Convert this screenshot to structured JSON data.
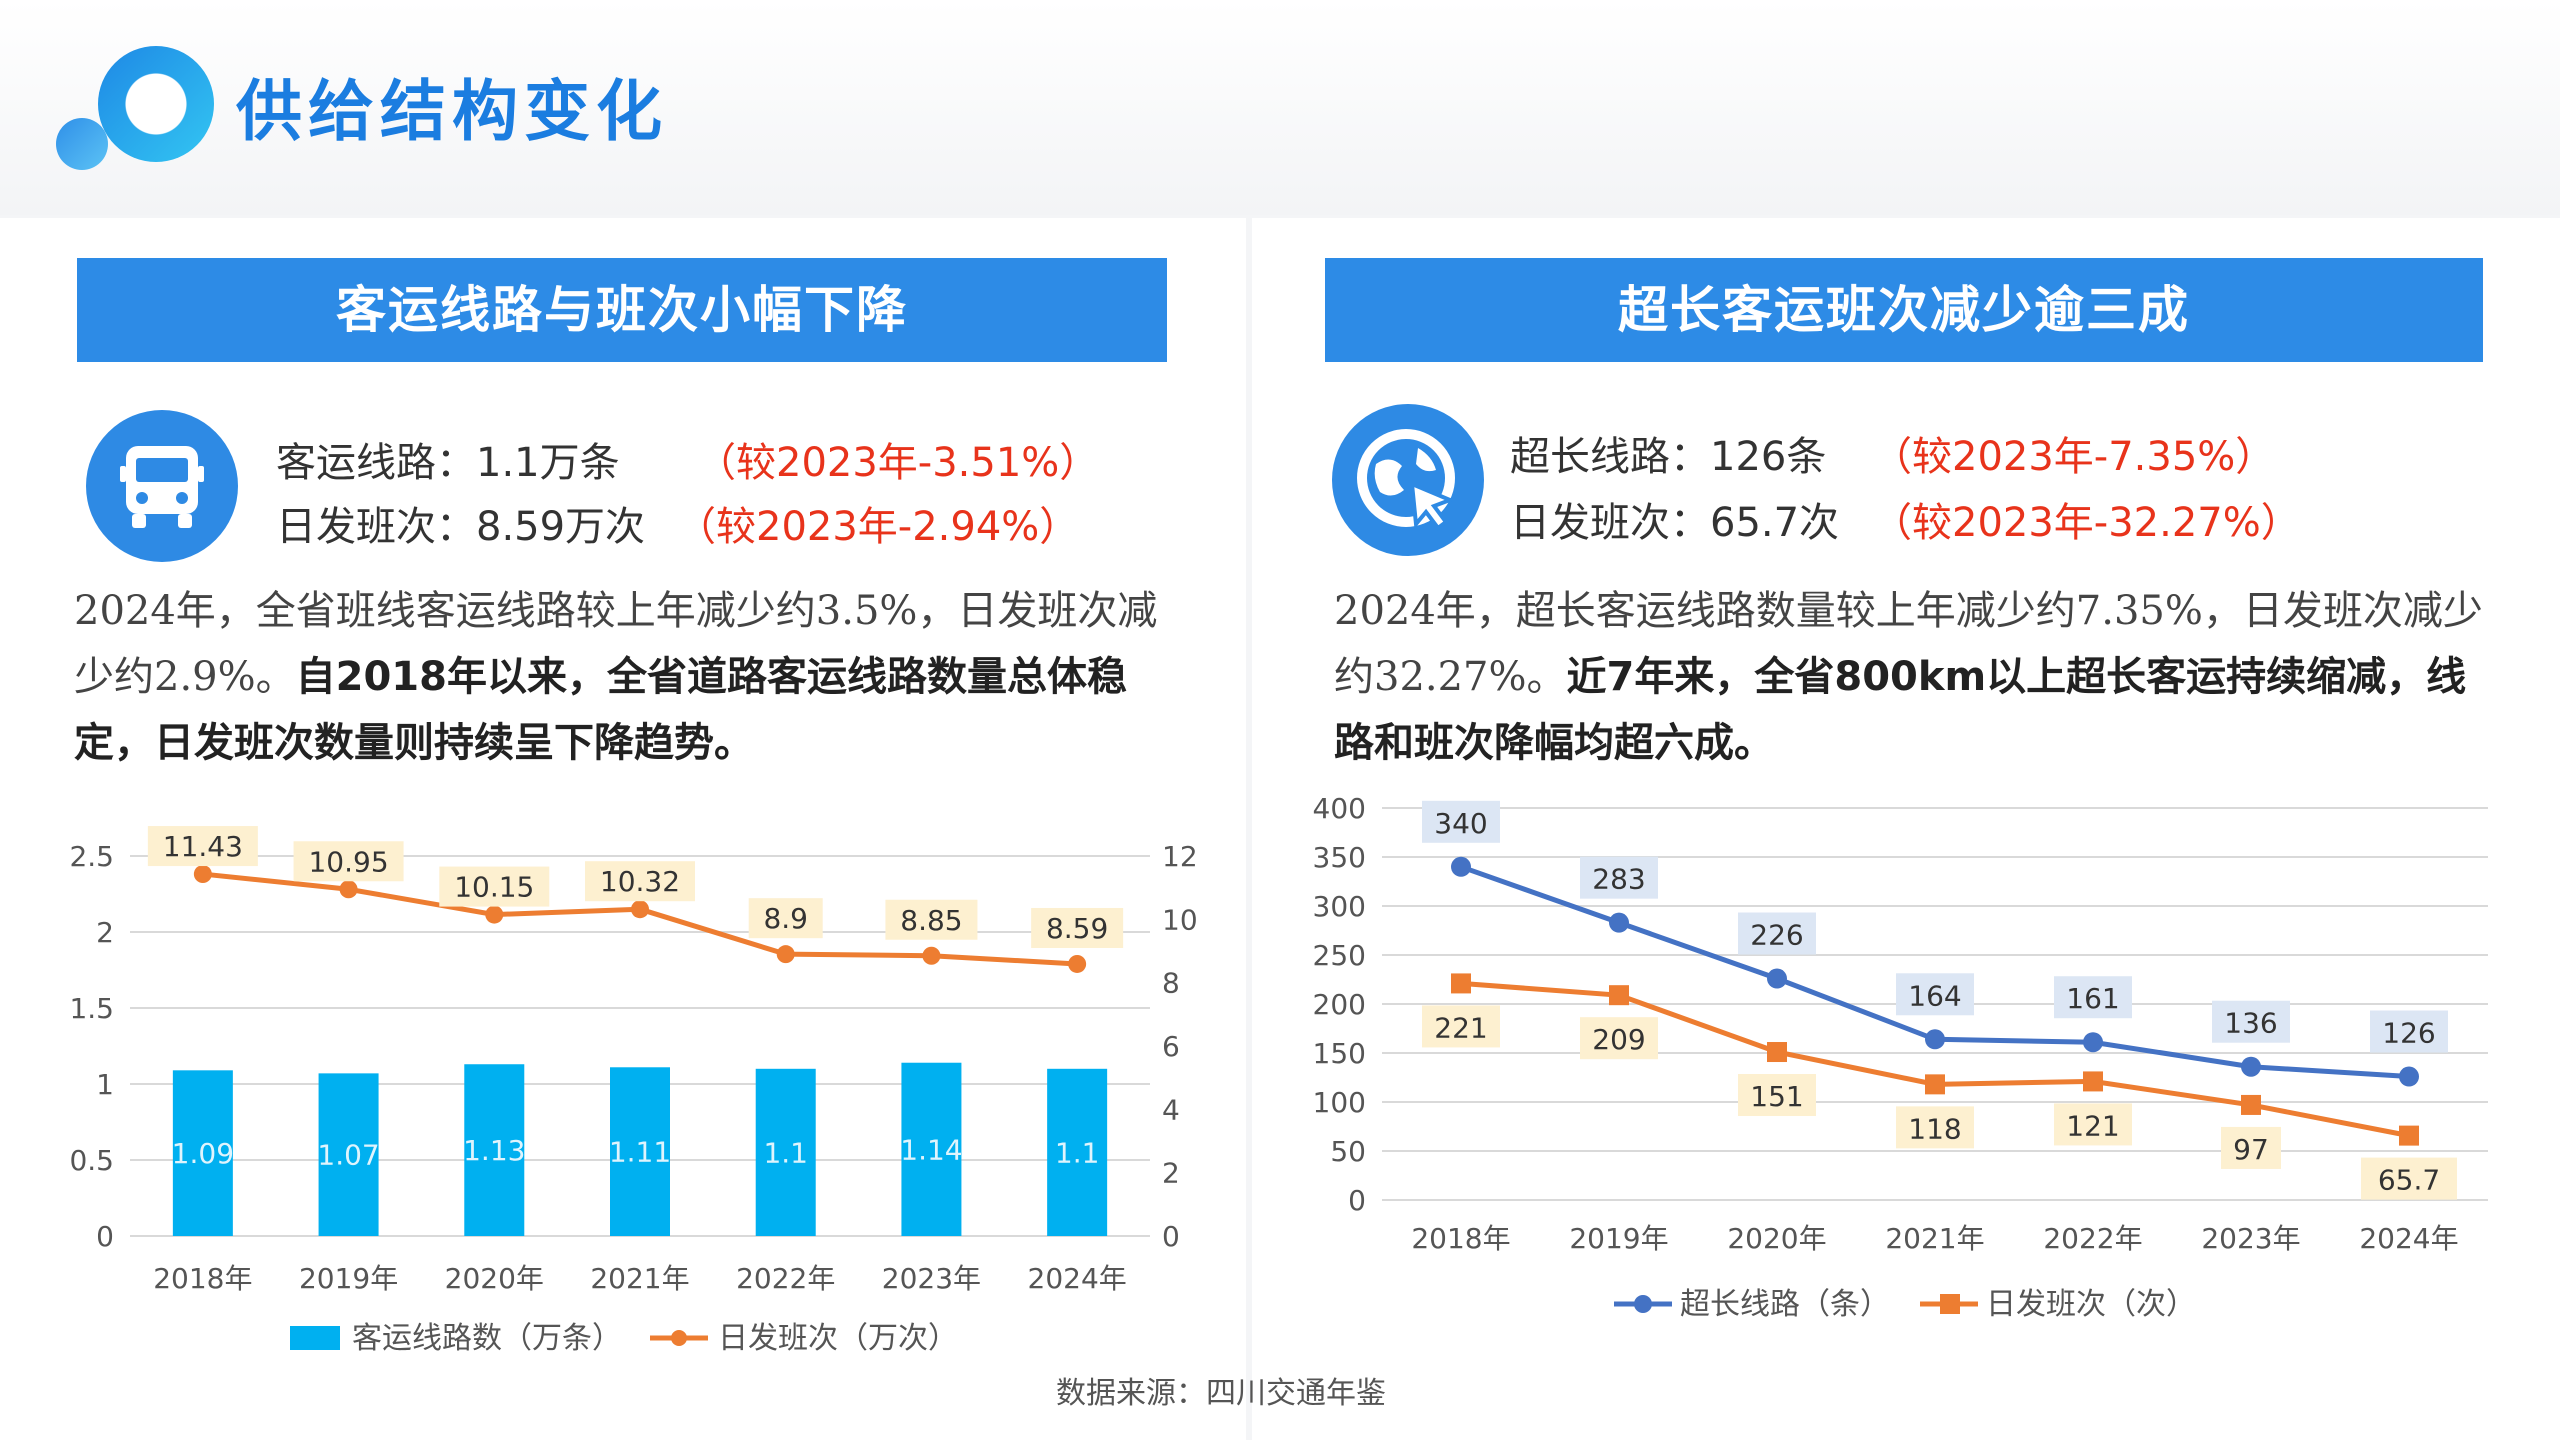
{
  "page_title": "供给结构变化",
  "source": "数据来源：四川交通年鉴",
  "colors": {
    "accent": "#2d8be6",
    "bar": "#00b0f0",
    "orange": "#ed7d31",
    "blue_line": "#4472c4",
    "highlight_red": "#e8331b"
  },
  "left": {
    "banner": "客运线路与班次小幅下降",
    "icon": "bus-icon",
    "stat1_label": "客运线路：1.1万条",
    "stat1_compare": "（较2023年-3.51%）",
    "stat2_label": "日发班次：8.59万次",
    "stat2_compare": "（较2023年-2.94%）",
    "desc_plain": "2024年，全省班线客运线路较上年减少约3.5%，日发班次减少约2.9%。",
    "desc_bold": "自2018年以来，全省道路客运线路数量总体稳定，日发班次数量则持续呈下降趋势。"
  },
  "right": {
    "banner": "超长客运班次减少逾三成",
    "icon": "globe-cursor-icon",
    "stat1_label": "超长线路：126条",
    "stat1_compare": "（较2023年-7.35%）",
    "stat2_label": "日发班次：65.7次",
    "stat2_compare": "（较2023年-32.27%）",
    "desc_plain": "2024年，超长客运线路数量较上年减少约7.35%，日发班次减少约32.27%。",
    "desc_bold": "近7年来，全省800km以上超长客运持续缩减，线路和班次降幅均超六成。"
  },
  "chart_data": [
    {
      "type": "bar+line",
      "categories": [
        "2018年",
        "2019年",
        "2020年",
        "2021年",
        "2022年",
        "2023年",
        "2024年"
      ],
      "series": [
        {
          "name": "客运线路数（万条）",
          "type": "bar",
          "axis": "left",
          "values": [
            1.09,
            1.07,
            1.13,
            1.11,
            1.1,
            1.14,
            1.1
          ],
          "color": "#00b0f0"
        },
        {
          "name": "日发班次（万次）",
          "type": "line",
          "axis": "right",
          "values": [
            11.43,
            10.95,
            10.15,
            10.32,
            8.9,
            8.85,
            8.59
          ],
          "color": "#ed7d31"
        }
      ],
      "y_left": {
        "min": 0,
        "max": 2.5,
        "ticks": [
          "0",
          "0.5",
          "1",
          "1.5",
          "2",
          "2.5"
        ]
      },
      "y_right": {
        "min": 0,
        "max": 12,
        "ticks": [
          "0",
          "2",
          "4",
          "6",
          "8",
          "10",
          "12"
        ]
      },
      "grid": true,
      "legend": "bottom"
    },
    {
      "type": "line",
      "categories": [
        "2018年",
        "2019年",
        "2020年",
        "2021年",
        "2022年",
        "2023年",
        "2024年"
      ],
      "series": [
        {
          "name": "超长线路（条）",
          "values": [
            340,
            283,
            226,
            164,
            161,
            136,
            126
          ],
          "color": "#4472c4",
          "marker": "circle"
        },
        {
          "name": "日发班次（次）",
          "values": [
            221,
            209,
            151,
            118,
            121,
            97,
            65.7
          ],
          "color": "#ed7d31",
          "marker": "square"
        }
      ],
      "y": {
        "min": 0,
        "max": 400,
        "ticks": [
          "0",
          "50",
          "100",
          "150",
          "200",
          "250",
          "300",
          "350",
          "400"
        ]
      },
      "grid": true,
      "legend": "bottom"
    }
  ]
}
